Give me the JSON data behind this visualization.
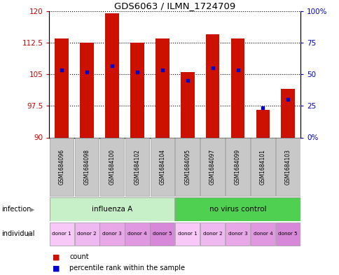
{
  "title": "GDS6063 / ILMN_1724709",
  "samples": [
    "GSM1684096",
    "GSM1684098",
    "GSM1684100",
    "GSM1684102",
    "GSM1684104",
    "GSM1684095",
    "GSM1684097",
    "GSM1684099",
    "GSM1684101",
    "GSM1684103"
  ],
  "bar_heights": [
    113.5,
    112.5,
    119.5,
    112.5,
    113.5,
    105.5,
    114.5,
    113.5,
    96.5,
    101.5
  ],
  "blue_markers": [
    106.0,
    105.5,
    107.0,
    105.5,
    106.0,
    103.5,
    106.5,
    106.0,
    97.0,
    99.0
  ],
  "ylim_left": [
    90,
    120
  ],
  "ylim_right": [
    0,
    100
  ],
  "yticks_left": [
    90,
    97.5,
    105,
    112.5,
    120
  ],
  "ytick_labels_left": [
    "90",
    "97.5",
    "105",
    "112.5",
    "120"
  ],
  "yticks_right": [
    0,
    25,
    50,
    75,
    100
  ],
  "ytick_labels_right": [
    "0%",
    "25",
    "50",
    "75",
    "100%"
  ],
  "infection_groups": [
    {
      "label": "influenza A",
      "start": 0,
      "end": 5,
      "color": "#c8f0c8"
    },
    {
      "label": "no virus control",
      "start": 5,
      "end": 10,
      "color": "#50d050"
    }
  ],
  "individual_labels": [
    "donor 1",
    "donor 2",
    "donor 3",
    "donor 4",
    "donor 5",
    "donor 1",
    "donor 2",
    "donor 3",
    "donor 4",
    "donor 5"
  ],
  "ind_colors": [
    "#f8c8f8",
    "#f0b8f0",
    "#e8a8e8",
    "#e098e0",
    "#d888d8",
    "#f8c8f8",
    "#f0b8f0",
    "#e8a8e8",
    "#e098e0",
    "#d888d8"
  ],
  "bar_color": "#cc1100",
  "blue_color": "#0000cc",
  "left_label_color": "#cc0000",
  "right_label_color": "#0000cc",
  "sample_bg": "#c8c8c8"
}
